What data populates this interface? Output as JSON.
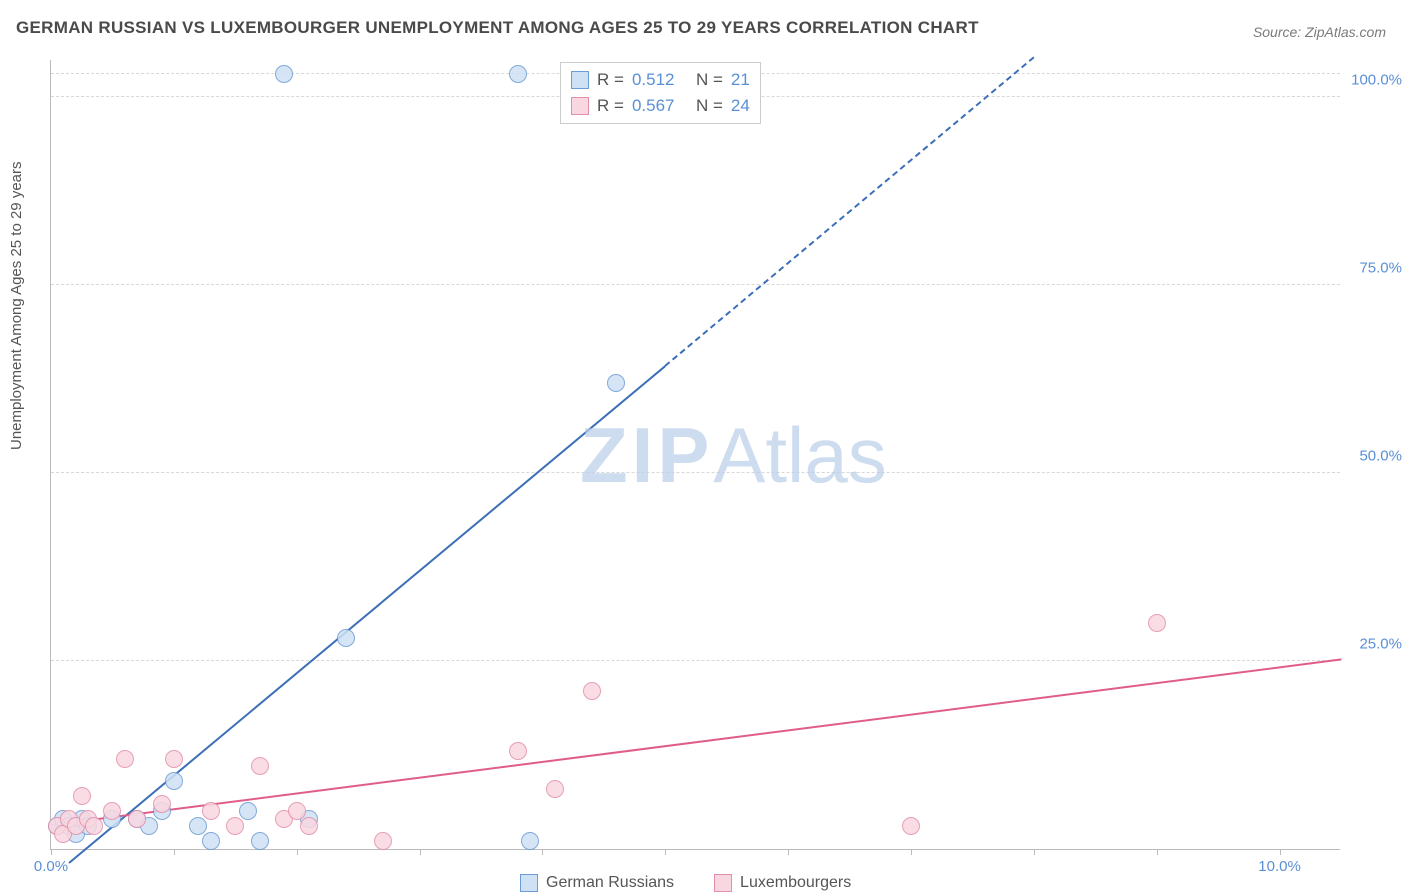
{
  "title": "GERMAN RUSSIAN VS LUXEMBOURGER UNEMPLOYMENT AMONG AGES 25 TO 29 YEARS CORRELATION CHART",
  "source": "Source: ZipAtlas.com",
  "ylabel": "Unemployment Among Ages 25 to 29 years",
  "watermark": {
    "bold": "ZIP",
    "light": "Atlas"
  },
  "chart": {
    "type": "scatter-correlation",
    "background_color": "#ffffff",
    "grid_color": "#d8d8d8",
    "axis_color": "#bbbbbb",
    "label_color": "#5a8fd6",
    "text_color": "#555555",
    "xlim": [
      0,
      10.5
    ],
    "ylim": [
      0,
      105
    ],
    "xticks": [
      0.0,
      1.0,
      2.0,
      3.0,
      4.0,
      5.0,
      6.0,
      7.0,
      8.0,
      9.0,
      10.0
    ],
    "xtick_labels": {
      "0": "0.0%",
      "10": "10.0%"
    },
    "yticks": [
      25,
      50,
      75,
      100
    ],
    "ytick_labels": {
      "25": "25.0%",
      "50": "50.0%",
      "75": "75.0%",
      "100": "100.0%"
    },
    "point_radius": 9,
    "point_border_width": 1,
    "line_width": 2
  },
  "series": [
    {
      "name": "German Russians",
      "fill": "#cfe1f5",
      "stroke": "#6d9bd4",
      "line_color": "#3b6fb8",
      "R": "0.512",
      "N": "21",
      "points": [
        [
          0.05,
          3
        ],
        [
          0.1,
          4
        ],
        [
          0.15,
          3
        ],
        [
          0.2,
          2
        ],
        [
          0.25,
          4
        ],
        [
          0.3,
          3
        ],
        [
          0.5,
          4
        ],
        [
          0.7,
          4
        ],
        [
          0.8,
          3
        ],
        [
          0.9,
          5
        ],
        [
          1.0,
          9
        ],
        [
          1.2,
          3
        ],
        [
          1.3,
          1
        ],
        [
          1.6,
          5
        ],
        [
          1.7,
          1
        ],
        [
          1.9,
          103
        ],
        [
          2.1,
          4
        ],
        [
          2.4,
          28
        ],
        [
          3.8,
          103
        ],
        [
          3.9,
          1
        ],
        [
          4.6,
          62
        ]
      ],
      "trend": {
        "x1": 0.15,
        "y1": -2,
        "x2": 5.0,
        "y2": 64,
        "dash_to_x": 8.0,
        "dash_to_y": 105
      }
    },
    {
      "name": "Luxembourgers",
      "fill": "#f8d7e0",
      "stroke": "#e38fa8",
      "line_color": "#e05d88",
      "R": "0.567",
      "N": "24",
      "points": [
        [
          0.05,
          3
        ],
        [
          0.1,
          2
        ],
        [
          0.15,
          4
        ],
        [
          0.2,
          3
        ],
        [
          0.25,
          7
        ],
        [
          0.3,
          4
        ],
        [
          0.35,
          3
        ],
        [
          0.5,
          5
        ],
        [
          0.6,
          12
        ],
        [
          0.7,
          4
        ],
        [
          0.9,
          6
        ],
        [
          1.0,
          12
        ],
        [
          1.3,
          5
        ],
        [
          1.5,
          3
        ],
        [
          1.7,
          11
        ],
        [
          1.9,
          4
        ],
        [
          2.0,
          5
        ],
        [
          2.1,
          3
        ],
        [
          2.7,
          1
        ],
        [
          3.8,
          13
        ],
        [
          4.1,
          8
        ],
        [
          4.4,
          21
        ],
        [
          7.0,
          3
        ],
        [
          9.0,
          30
        ]
      ],
      "trend": {
        "x1": 0,
        "y1": 3,
        "x2": 10.5,
        "y2": 25
      }
    }
  ],
  "legend_top": {
    "r_label": "R  =",
    "n_label": "N  ="
  },
  "legend_bottom": [
    {
      "label": "German Russians",
      "fill": "#cfe1f5",
      "stroke": "#6d9bd4"
    },
    {
      "label": "Luxembourgers",
      "fill": "#f8d7e0",
      "stroke": "#e38fa8"
    }
  ]
}
